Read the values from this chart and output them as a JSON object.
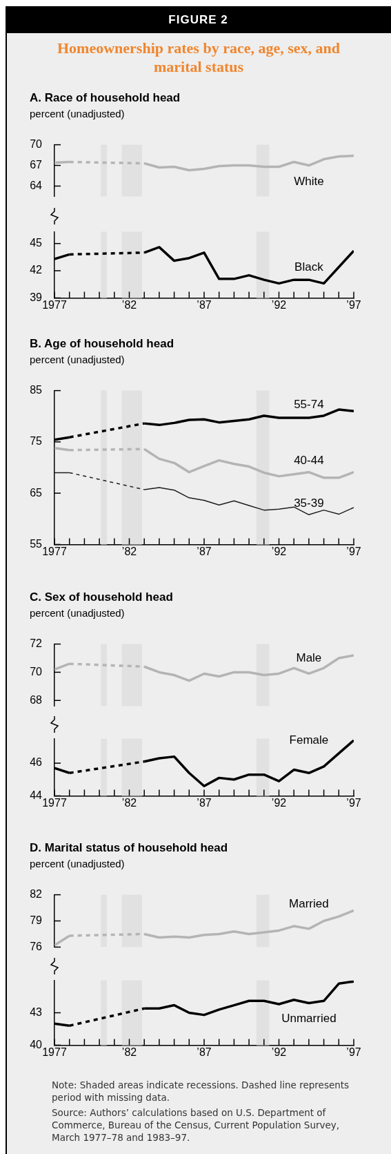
{
  "chart_data": [
    {
      "type": "line",
      "title": "Homeownership rates by race, age, sex, and marital status",
      "subtitle": "A. Race of household head",
      "ylabel": "percent (unadjusted)",
      "annotations": [
        "FIGURE 2"
      ],
      "marker": "none",
      "tick_labels": "y",
      "x": [
        1977,
        1978,
        1979,
        1980,
        1981,
        1982,
        1983,
        1984,
        1985,
        1986,
        1987,
        1988,
        1989,
        1990,
        1991,
        1992,
        1993,
        1994,
        1995,
        1996,
        1997
      ],
      "xlim": [
        1977,
        1997
      ],
      "ylim": [
        62.5,
        70
      ],
      "yticks": [
        64,
        67,
        70
      ],
      "bands": [
        {
          "axis": "x",
          "from": 1980.1,
          "to": 1980.5,
          "color": "#e1e1e1"
        },
        {
          "axis": "x",
          "from": 1981.5,
          "to": 1982.85,
          "color": "#e1e1e1"
        },
        {
          "axis": "x",
          "from": 1990.5,
          "to": 1991.35,
          "color": "#e1e1e1"
        }
      ],
      "series": [
        {
          "name": "White",
          "color": "#b4b4b4",
          "values": [
            67.4,
            67.5,
            null,
            null,
            null,
            null,
            67.3,
            66.7,
            66.8,
            66.3,
            66.5,
            66.9,
            67.0,
            67.0,
            66.8,
            66.8,
            67.5,
            67.0,
            67.9,
            68.3,
            68.4
          ]
        }
      ]
    },
    {
      "type": "line",
      "marker": "none",
      "x": [
        1977,
        1978,
        1979,
        1980,
        1981,
        1982,
        1983,
        1984,
        1985,
        1986,
        1987,
        1988,
        1989,
        1990,
        1991,
        1992,
        1993,
        1994,
        1995,
        1996,
        1997
      ],
      "xlim": [
        1977,
        1997
      ],
      "xticks": [
        {
          "value": 1977,
          "label": "1977"
        },
        {
          "value": 1978,
          "label": null
        },
        {
          "value": 1979,
          "label": null
        },
        {
          "value": 1980,
          "label": null
        },
        {
          "value": 1981,
          "label": null
        },
        {
          "value": 1982,
          "label": "’82"
        },
        {
          "value": 1983,
          "label": null
        },
        {
          "value": 1984,
          "label": null
        },
        {
          "value": 1985,
          "label": null
        },
        {
          "value": 1986,
          "label": null
        },
        {
          "value": 1987,
          "label": "’87"
        },
        {
          "value": 1988,
          "label": null
        },
        {
          "value": 1989,
          "label": null
        },
        {
          "value": 1990,
          "label": null
        },
        {
          "value": 1991,
          "label": null
        },
        {
          "value": 1992,
          "label": "’92"
        },
        {
          "value": 1993,
          "label": null
        },
        {
          "value": 1994,
          "label": null
        },
        {
          "value": 1995,
          "label": null
        },
        {
          "value": 1996,
          "label": null
        },
        {
          "value": 1997,
          "label": "’97"
        }
      ],
      "ylim": [
        39,
        46.3
      ],
      "yticks": [
        39,
        42,
        45
      ],
      "bands": [
        {
          "axis": "x",
          "from": 1980.1,
          "to": 1980.5,
          "color": "#e1e1e1"
        },
        {
          "axis": "x",
          "from": 1981.5,
          "to": 1982.85,
          "color": "#e1e1e1"
        },
        {
          "axis": "x",
          "from": 1990.5,
          "to": 1991.35,
          "color": "#e1e1e1"
        }
      ],
      "series": [
        {
          "name": "Black",
          "color": "#000000",
          "values": [
            43.3,
            43.8,
            null,
            null,
            null,
            null,
            44.0,
            44.6,
            43.1,
            43.4,
            44.0,
            41.1,
            41.1,
            41.5,
            41.0,
            40.6,
            41.0,
            41.0,
            40.6,
            42.4,
            44.2
          ]
        }
      ]
    },
    {
      "type": "line",
      "title": "B. Age of household head",
      "ylabel": "percent (unadjusted)",
      "marker": "none",
      "x": [
        1977,
        1978,
        1979,
        1980,
        1981,
        1982,
        1983,
        1984,
        1985,
        1986,
        1987,
        1988,
        1989,
        1990,
        1991,
        1992,
        1993,
        1994,
        1995,
        1996,
        1997
      ],
      "xlim": [
        1977,
        1997
      ],
      "xticks": [
        {
          "value": 1977,
          "label": "1977"
        },
        {
          "value": 1978,
          "label": null
        },
        {
          "value": 1979,
          "label": null
        },
        {
          "value": 1980,
          "label": null
        },
        {
          "value": 1981,
          "label": null
        },
        {
          "value": 1982,
          "label": "’82"
        },
        {
          "value": 1983,
          "label": null
        },
        {
          "value": 1984,
          "label": null
        },
        {
          "value": 1985,
          "label": null
        },
        {
          "value": 1986,
          "label": null
        },
        {
          "value": 1987,
          "label": "’87"
        },
        {
          "value": 1988,
          "label": null
        },
        {
          "value": 1989,
          "label": null
        },
        {
          "value": 1990,
          "label": null
        },
        {
          "value": 1991,
          "label": null
        },
        {
          "value": 1992,
          "label": "’92"
        },
        {
          "value": 1993,
          "label": null
        },
        {
          "value": 1994,
          "label": null
        },
        {
          "value": 1995,
          "label": null
        },
        {
          "value": 1996,
          "label": null
        },
        {
          "value": 1997,
          "label": "’97"
        }
      ],
      "ylim": [
        55,
        85
      ],
      "yticks": [
        55,
        65,
        75,
        85
      ],
      "bands": [
        {
          "axis": "x",
          "from": 1980.1,
          "to": 1980.5,
          "color": "#e1e1e1"
        },
        {
          "axis": "x",
          "from": 1981.5,
          "to": 1982.85,
          "color": "#e1e1e1"
        },
        {
          "axis": "x",
          "from": 1990.5,
          "to": 1991.35,
          "color": "#e1e1e1"
        }
      ],
      "series": [
        {
          "name": "55-74",
          "color": "#000000",
          "values": [
            75.4,
            75.9,
            null,
            null,
            null,
            null,
            78.6,
            78.3,
            78.7,
            79.3,
            79.4,
            78.8,
            79.1,
            79.4,
            80.1,
            79.7,
            79.7,
            79.7,
            80.1,
            81.3,
            81.0
          ]
        },
        {
          "name": "40-44",
          "color": "#b4b4b4",
          "values": [
            73.8,
            73.4,
            null,
            null,
            null,
            null,
            73.6,
            71.7,
            70.9,
            69.1,
            70.3,
            71.4,
            70.7,
            70.2,
            69.0,
            68.3,
            68.7,
            69.1,
            68.0,
            68.0,
            69.1
          ]
        },
        {
          "name": "35-39",
          "color": "#1e1e1e",
          "values": [
            69.0,
            69.0,
            null,
            null,
            null,
            null,
            65.7,
            66.1,
            65.6,
            64.1,
            63.6,
            62.7,
            63.5,
            62.6,
            61.7,
            61.9,
            62.3,
            60.8,
            61.7,
            60.9,
            62.2
          ]
        }
      ]
    },
    {
      "type": "line",
      "title": "C. Sex of household head",
      "ylabel": "percent (unadjusted)",
      "marker": "none",
      "tick_labels": "y",
      "x": [
        1977,
        1978,
        1979,
        1980,
        1981,
        1982,
        1983,
        1984,
        1985,
        1986,
        1987,
        1988,
        1989,
        1990,
        1991,
        1992,
        1993,
        1994,
        1995,
        1996,
        1997
      ],
      "xlim": [
        1977,
        1997
      ],
      "ylim": [
        67.6,
        72
      ],
      "yticks": [
        68,
        70,
        72
      ],
      "bands": [
        {
          "axis": "x",
          "from": 1980.1,
          "to": 1980.5,
          "color": "#e1e1e1"
        },
        {
          "axis": "x",
          "from": 1981.5,
          "to": 1982.85,
          "color": "#e1e1e1"
        },
        {
          "axis": "x",
          "from": 1990.5,
          "to": 1991.35,
          "color": "#e1e1e1"
        }
      ],
      "series": [
        {
          "name": "Male",
          "color": "#b4b4b4",
          "values": [
            70.2,
            70.6,
            null,
            null,
            null,
            null,
            70.4,
            70.0,
            69.8,
            69.4,
            69.9,
            69.7,
            70.0,
            70.0,
            69.8,
            69.9,
            70.3,
            69.9,
            70.3,
            71.0,
            71.2
          ]
        }
      ]
    },
    {
      "type": "line",
      "marker": "none",
      "x": [
        1977,
        1978,
        1979,
        1980,
        1981,
        1982,
        1983,
        1984,
        1985,
        1986,
        1987,
        1988,
        1989,
        1990,
        1991,
        1992,
        1993,
        1994,
        1995,
        1996,
        1997
      ],
      "xlim": [
        1977,
        1997
      ],
      "xticks": [
        {
          "value": 1977,
          "label": "1977"
        },
        {
          "value": 1978,
          "label": null
        },
        {
          "value": 1979,
          "label": null
        },
        {
          "value": 1980,
          "label": null
        },
        {
          "value": 1981,
          "label": null
        },
        {
          "value": 1982,
          "label": "’82"
        },
        {
          "value": 1983,
          "label": null
        },
        {
          "value": 1984,
          "label": null
        },
        {
          "value": 1985,
          "label": null
        },
        {
          "value": 1986,
          "label": null
        },
        {
          "value": 1987,
          "label": "’87"
        },
        {
          "value": 1988,
          "label": null
        },
        {
          "value": 1989,
          "label": null
        },
        {
          "value": 1990,
          "label": null
        },
        {
          "value": 1991,
          "label": null
        },
        {
          "value": 1992,
          "label": "’92"
        },
        {
          "value": 1993,
          "label": null
        },
        {
          "value": 1994,
          "label": null
        },
        {
          "value": 1995,
          "label": null
        },
        {
          "value": 1996,
          "label": null
        },
        {
          "value": 1997,
          "label": "’97"
        }
      ],
      "ylim": [
        44,
        47.5
      ],
      "yticks": [
        44,
        46
      ],
      "bands": [
        {
          "axis": "x",
          "from": 1980.1,
          "to": 1980.5,
          "color": "#e1e1e1"
        },
        {
          "axis": "x",
          "from": 1981.5,
          "to": 1982.85,
          "color": "#e1e1e1"
        },
        {
          "axis": "x",
          "from": 1990.5,
          "to": 1991.35,
          "color": "#e1e1e1"
        }
      ],
      "series": [
        {
          "name": "Female",
          "color": "#000000",
          "values": [
            45.7,
            45.4,
            null,
            null,
            null,
            null,
            46.1,
            46.3,
            46.4,
            45.4,
            44.6,
            45.1,
            45.0,
            45.3,
            45.3,
            44.9,
            45.6,
            45.4,
            45.8,
            46.6,
            47.4
          ]
        }
      ]
    },
    {
      "type": "line",
      "title": "D. Marital status of household head",
      "ylabel": "percent (unadjusted)",
      "marker": "none",
      "tick_labels": "y",
      "x": [
        1977,
        1978,
        1979,
        1980,
        1981,
        1982,
        1983,
        1984,
        1985,
        1986,
        1987,
        1988,
        1989,
        1990,
        1991,
        1992,
        1993,
        1994,
        1995,
        1996,
        1997
      ],
      "xlim": [
        1977,
        1997
      ],
      "ylim": [
        76,
        82
      ],
      "yticks": [
        76,
        79,
        82
      ],
      "bands": [
        {
          "axis": "x",
          "from": 1980.1,
          "to": 1980.5,
          "color": "#e1e1e1"
        },
        {
          "axis": "x",
          "from": 1981.5,
          "to": 1982.85,
          "color": "#e1e1e1"
        },
        {
          "axis": "x",
          "from": 1990.5,
          "to": 1991.35,
          "color": "#e1e1e1"
        }
      ],
      "series": [
        {
          "name": "Married",
          "color": "#b4b4b4",
          "values": [
            76.2,
            77.3,
            null,
            null,
            null,
            null,
            77.5,
            77.1,
            77.2,
            77.1,
            77.4,
            77.5,
            77.8,
            77.5,
            77.7,
            77.9,
            78.4,
            78.1,
            79.0,
            79.5,
            80.2
          ]
        }
      ]
    },
    {
      "type": "line",
      "marker": "none",
      "annotations": [
        "Note: Shaded areas indicate recessions. Dashed line represents period with missing data.",
        "Source: Authors’ calculations based on U.S. Department of Commerce, Bureau of the Census, Current Population Survey, March 1977–78 and 1983–97."
      ],
      "x": [
        1977,
        1978,
        1979,
        1980,
        1981,
        1982,
        1983,
        1984,
        1985,
        1986,
        1987,
        1988,
        1989,
        1990,
        1991,
        1992,
        1993,
        1994,
        1995,
        1996,
        1997
      ],
      "xlim": [
        1977,
        1997
      ],
      "xticks": [
        {
          "value": 1977,
          "label": "1977"
        },
        {
          "value": 1978,
          "label": null
        },
        {
          "value": 1979,
          "label": null
        },
        {
          "value": 1980,
          "label": null
        },
        {
          "value": 1981,
          "label": null
        },
        {
          "value": 1982,
          "label": "’82"
        },
        {
          "value": 1983,
          "label": null
        },
        {
          "value": 1984,
          "label": null
        },
        {
          "value": 1985,
          "label": null
        },
        {
          "value": 1986,
          "label": null
        },
        {
          "value": 1987,
          "label": "’87"
        },
        {
          "value": 1988,
          "label": null
        },
        {
          "value": 1989,
          "label": null
        },
        {
          "value": 1990,
          "label": null
        },
        {
          "value": 1991,
          "label": null
        },
        {
          "value": 1992,
          "label": "’92"
        },
        {
          "value": 1993,
          "label": null
        },
        {
          "value": 1994,
          "label": null
        },
        {
          "value": 1995,
          "label": null
        },
        {
          "value": 1996,
          "label": null
        },
        {
          "value": 1997,
          "label": "’97"
        }
      ],
      "ylim": [
        40,
        46
      ],
      "yticks": [
        40,
        43
      ],
      "bands": [
        {
          "axis": "x",
          "from": 1980.1,
          "to": 1980.5,
          "color": "#e1e1e1"
        },
        {
          "axis": "x",
          "from": 1981.5,
          "to": 1982.85,
          "color": "#e1e1e1"
        },
        {
          "axis": "x",
          "from": 1990.5,
          "to": 1991.35,
          "color": "#e1e1e1"
        }
      ],
      "series": [
        {
          "name": "Unmarried",
          "color": "#000000",
          "values": [
            42.0,
            41.8,
            null,
            null,
            null,
            null,
            43.4,
            43.4,
            43.7,
            43.0,
            42.8,
            43.3,
            43.7,
            44.1,
            44.1,
            43.8,
            44.2,
            43.9,
            44.1,
            45.7,
            45.9
          ]
        }
      ]
    }
  ]
}
